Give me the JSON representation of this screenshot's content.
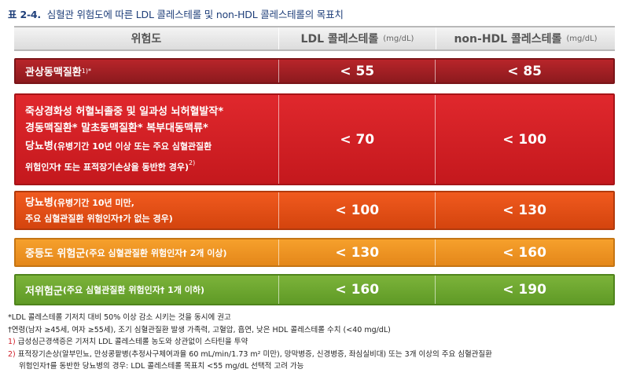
{
  "title": {
    "number": "표 2-4.",
    "text": "심혈관 위험도에 따른 LDL 콜레스테롤 및 non-HDL 콜레스테롤의 목표치"
  },
  "header": {
    "col1": "위험도",
    "col2": "LDL 콜레스테롤",
    "col2_unit": "(mg/dL)",
    "col3": "non-HDL 콜레스테롤",
    "col3_unit": "(mg/dL)"
  },
  "rows": [
    {
      "label": "관상동맥질환",
      "sup": "1)*",
      "ldl": "< 55",
      "nonhdl": "< 85",
      "color": "#a21f24"
    },
    {
      "line1": "죽상경화성 허혈뇌졸중 및 일과성 뇌허혈발작*",
      "line2": "경동맥질환*  말초동맥질환*  복부대동맥류*",
      "line3_main": "당뇨병",
      "line3_sub": "(유병기간 10년 이상 또는 주요 심혈관질환",
      "line4": "위험인자† 또는 표적장기손상을 동반한 경우)",
      "line4_sup": "2)",
      "ldl": "< 70",
      "nonhdl": "< 100",
      "color": "#d41f24"
    },
    {
      "line1_main": "당뇨병",
      "line1_sub": "(유병기간 10년 미만,",
      "line2": "주요 심혈관질환 위험인자†가 없는 경우)",
      "ldl": "< 100",
      "nonhdl": "< 130",
      "color": "#e84e17"
    },
    {
      "label_main": "중등도 위험군",
      "label_sub": "(주요 심혈관질환 위험인자† 2개 이상)",
      "ldl": "< 130",
      "nonhdl": "< 160",
      "color": "#f39423"
    },
    {
      "label_main": "저위험군",
      "label_sub": "(주요 심혈관질환 위험인자† 1개 이하)",
      "ldl": "< 160",
      "nonhdl": "< 190",
      "color": "#6ea831"
    }
  ],
  "notes": {
    "n1": "*LDL 콜레스테롤 기저치 대비 50% 이상 감소 시키는 것을 동시에 권고",
    "n2": "†연령(남자 ≥45세, 여자 ≥55세), 조기 심혈관질환 발생 가족력, 고혈압, 흡연, 낮은 HDL 콜레스테롤 수치 (<40 mg/dL)",
    "n3_mark": "1)",
    "n3": " 급성심근경색증은 기저치 LDL 콜레스테롤 농도와 상관없이 스타틴을 투약",
    "n4_mark": "2)",
    "n4": " 표적장기손상(알부민뇨, 만성콩팥병(추정사구체여과율 60 mL/min/1.73 m² 미만), 망막병증, 신경병증, 좌심실비대) 또는 3개 이상의 주요 심혈관질환",
    "n4b": "위험인자†를 동반한 당뇨병의 경우: LDL 콜레스테롤 목표치 <55 mg/dL 선택적 고려 가능"
  }
}
